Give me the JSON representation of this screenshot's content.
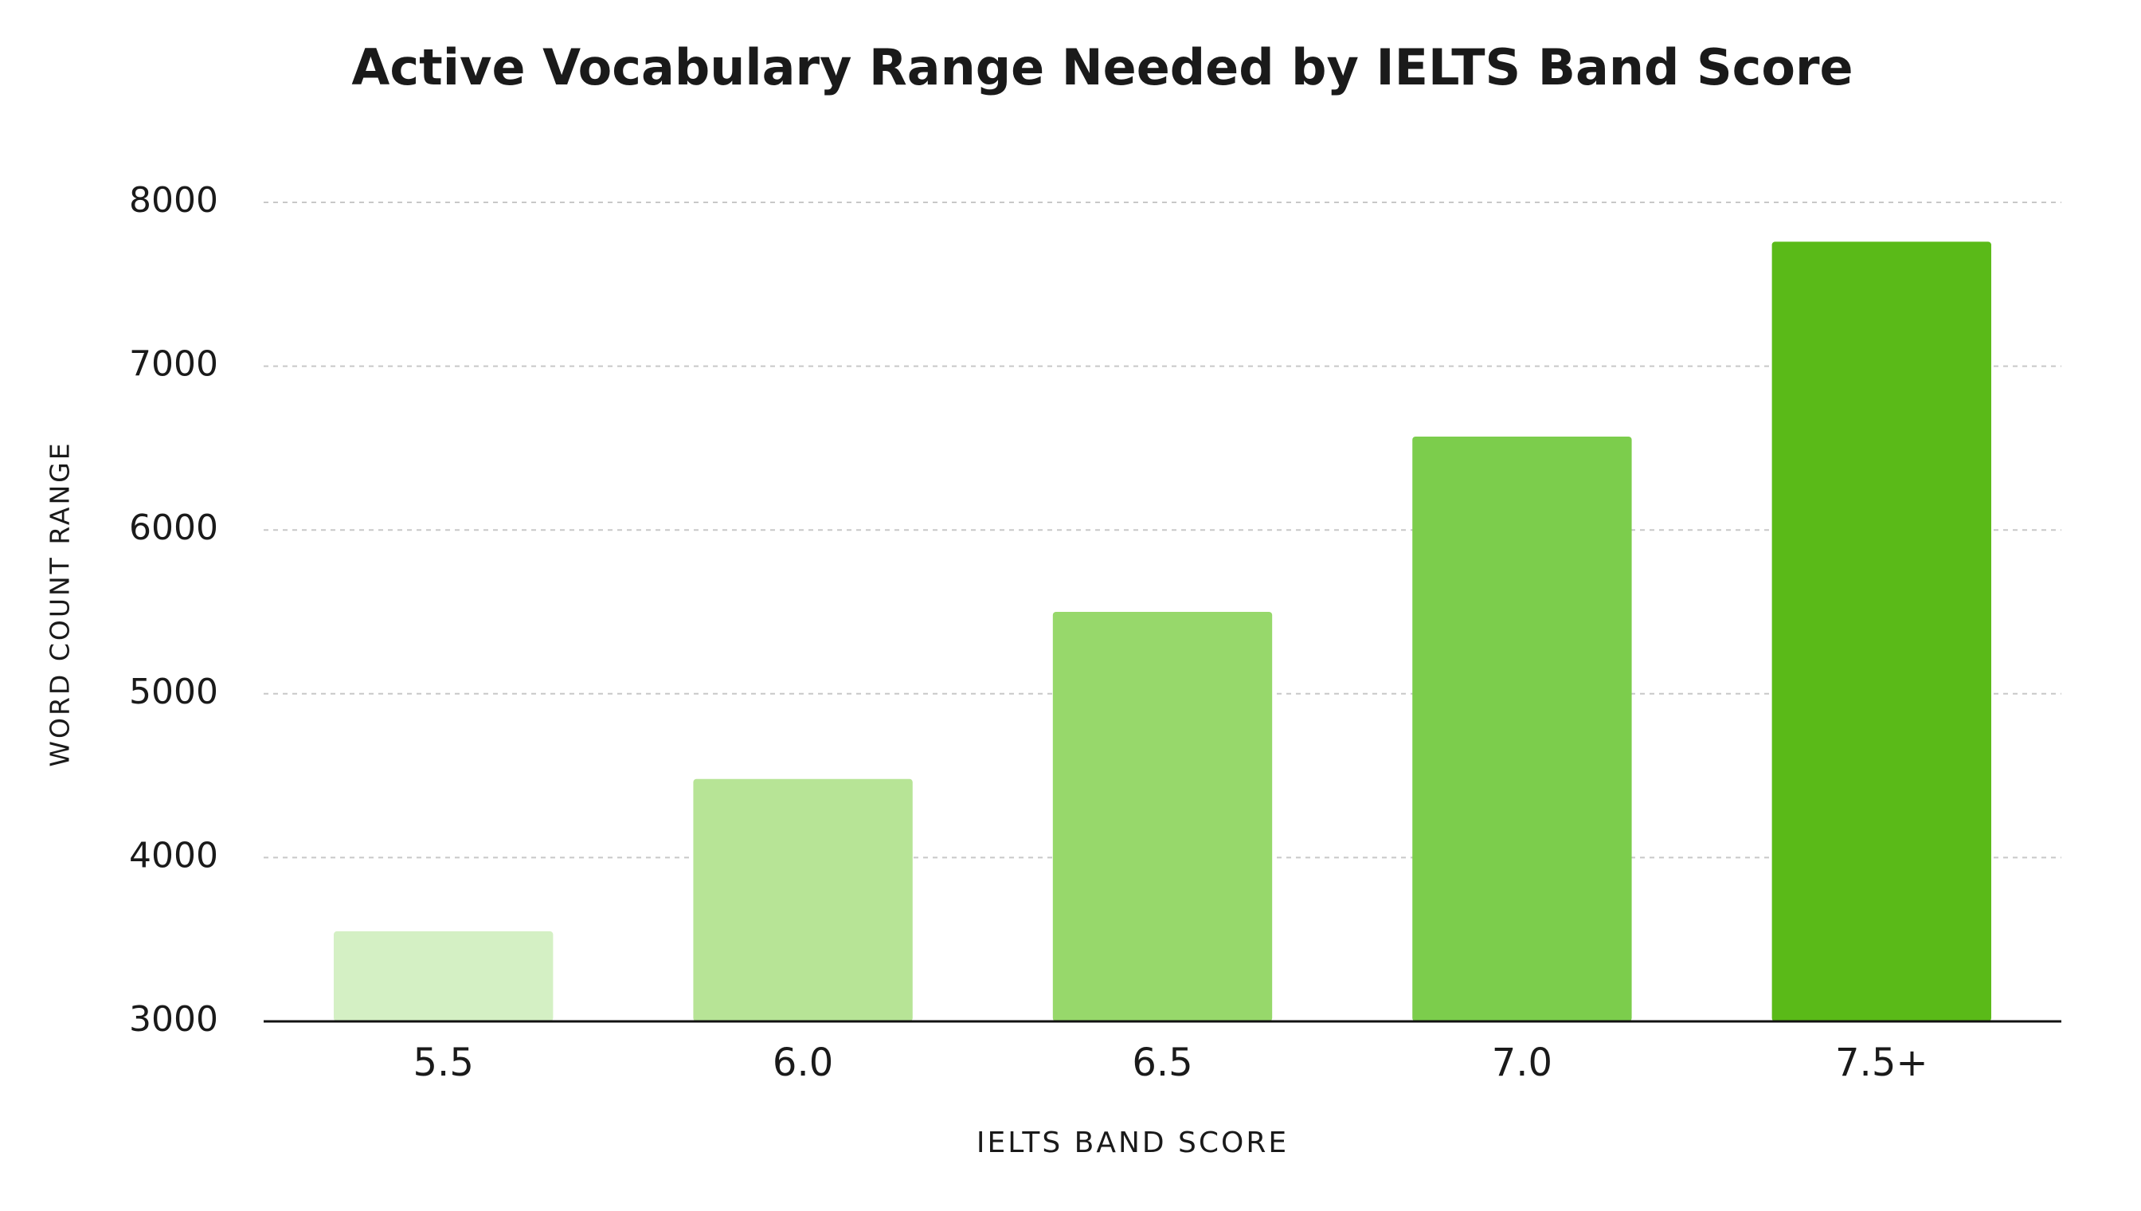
{
  "chart_data": {
    "type": "bar",
    "title": "Active Vocabulary Range Needed by IELTS Band Score",
    "x_label": "IELTS BAND SCORE",
    "y_label": "WORD COUNT RANGE",
    "categories": [
      "5.5",
      "6.0",
      "6.5",
      "7.0",
      "7.5+"
    ],
    "values": [
      3550,
      4480,
      5500,
      6570,
      7760
    ],
    "colors": [
      "#d4f0c4",
      "#b7e496",
      "#97d86b",
      "#7ccd4c",
      "#5aba18"
    ],
    "ylim": [
      3000,
      8000
    ],
    "yticks": [
      3000,
      4000,
      5000,
      6000,
      7000,
      8000
    ],
    "grid": true
  }
}
